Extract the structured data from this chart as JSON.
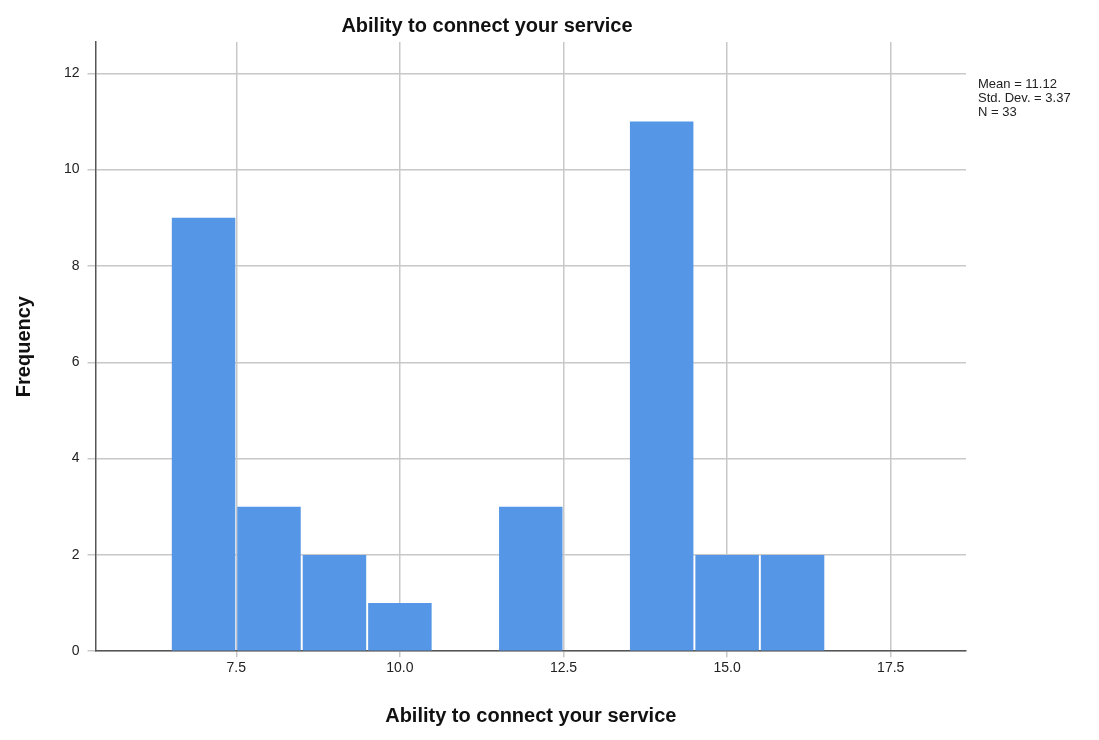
{
  "chart_data": {
    "type": "histogram",
    "title": "Ability to connect your service",
    "xlabel": "Ability to connect your service",
    "ylabel": "Frequency",
    "bins": [
      6.5,
      7.5,
      8.5,
      9.5,
      10.5,
      11.5,
      12.5,
      13.5,
      14.5,
      15.5,
      16.5
    ],
    "values": [
      9,
      3,
      2,
      1,
      0,
      3,
      0,
      11,
      2,
      2
    ],
    "color": "#5596e6",
    "xlim": [
      5.35,
      18.65
    ],
    "xticks": [
      {
        "value": 7.5,
        "label": "7.5"
      },
      {
        "value": 10,
        "label": "10.0"
      },
      {
        "value": 12.5,
        "label": "12.5"
      },
      {
        "value": 15,
        "label": "15.0"
      },
      {
        "value": 17.5,
        "label": "17.5"
      }
    ],
    "ylim": [
      0,
      12.65
    ],
    "yticks": [
      0,
      2,
      4,
      6,
      8,
      10,
      12
    ],
    "grid": true,
    "annotations": [
      "Mean = 11.12",
      "Std. Dev. = 3.37",
      "N = 33"
    ]
  }
}
